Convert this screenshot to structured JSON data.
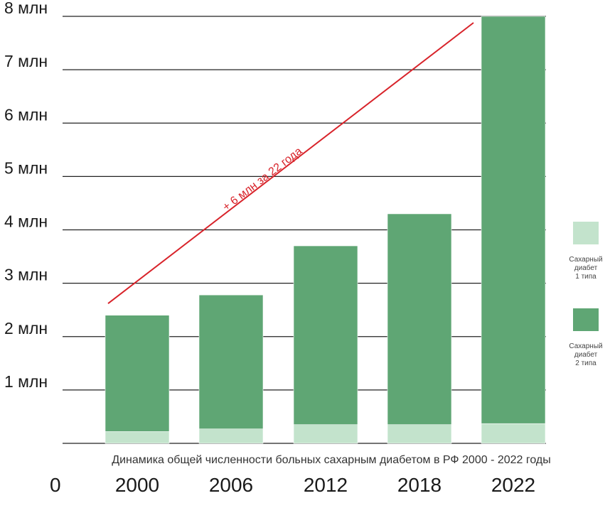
{
  "chart_data": {
    "type": "bar",
    "title": "",
    "caption": "Динамика общей численности больных сахарным диабетом в РФ 2000 - 2022 годы",
    "categories": [
      "2000",
      "2006",
      "2012",
      "2018",
      "2022"
    ],
    "series": [
      {
        "name": "Сахарный диабет 1 типа",
        "values": [
          0.22,
          0.27,
          0.35,
          0.35,
          0.37
        ],
        "color": "#c3e3cc"
      },
      {
        "name": "Сахарный диабет 2 типа",
        "values": [
          2.18,
          2.51,
          3.35,
          3.95,
          7.63
        ],
        "color": "#5fa674"
      }
    ],
    "stacked": true,
    "ylim": [
      0,
      8
    ],
    "y_ticks": [
      {
        "value": 1,
        "label": "1 млн"
      },
      {
        "value": 2,
        "label": "2 млн"
      },
      {
        "value": 3,
        "label": "3 млн"
      },
      {
        "value": 4,
        "label": "4 млн"
      },
      {
        "value": 5,
        "label": "5 млн"
      },
      {
        "value": 6,
        "label": "6 млн"
      },
      {
        "value": 7,
        "label": "7 млн"
      },
      {
        "value": 8,
        "label": "8 млн"
      }
    ],
    "origin_label": "0",
    "grid": true,
    "legend": {
      "placement": "right",
      "items": [
        {
          "lines": [
            "Сахарный",
            "диабет",
            "1 типа"
          ],
          "color": "#c3e3cc"
        },
        {
          "lines": [
            "Сахарный",
            "диабет",
            "2 типа"
          ],
          "color": "#5fa674"
        }
      ]
    },
    "annotation": {
      "text": "+ 6 млн за 22 года",
      "color": "#d8232a",
      "line_from": {
        "category": "2000",
        "value": 2.62
      },
      "line_to": {
        "category": "2022",
        "value": 7.88
      }
    }
  }
}
